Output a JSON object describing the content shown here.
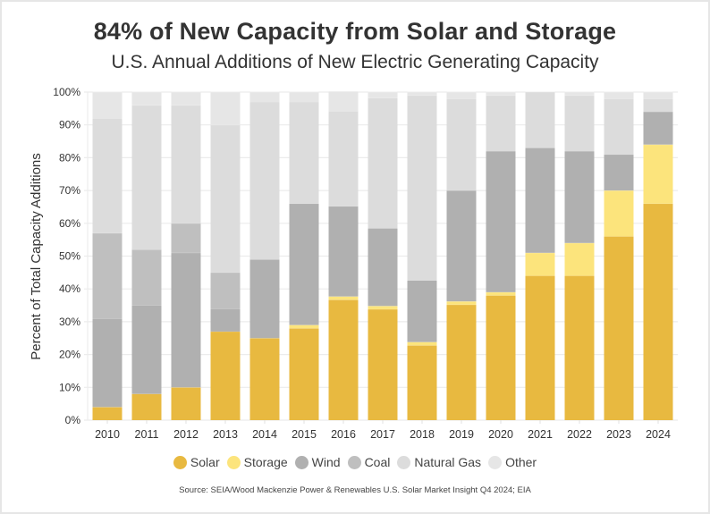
{
  "chart_data": {
    "type": "bar",
    "stacked": true,
    "title": "84% of New Capacity from Solar and Storage",
    "subtitle": "U.S. Annual Additions of New Electric Generating Capacity",
    "xlabel": "",
    "ylabel": "Percent of Total Capacity Additions",
    "ylim": [
      0,
      100
    ],
    "yticks": [
      "0%",
      "10%",
      "20%",
      "30%",
      "40%",
      "50%",
      "60%",
      "70%",
      "80%",
      "90%",
      "100%"
    ],
    "grid": true,
    "legend_position": "bottom",
    "categories": [
      "2010",
      "2011",
      "2012",
      "2013",
      "2014",
      "2015",
      "2016",
      "2017",
      "2018",
      "2019",
      "2020",
      "2021",
      "2022",
      "2023",
      "2024"
    ],
    "series": [
      {
        "name": "Solar",
        "color": "#e8b940",
        "values": [
          4,
          8,
          10,
          27,
          25,
          28,
          36.7,
          33.8,
          22.8,
          35.2,
          38,
          44,
          44,
          56,
          66
        ]
      },
      {
        "name": "Storage",
        "color": "#fce47c",
        "values": [
          0,
          0,
          0,
          0,
          0,
          1,
          1,
          1,
          1,
          1,
          1,
          7,
          10,
          14,
          18
        ]
      },
      {
        "name": "Wind",
        "color": "#b0b0b0",
        "values": [
          27,
          27,
          41,
          7,
          24,
          37,
          27.5,
          23.7,
          18.8,
          33.8,
          43,
          32,
          28,
          11,
          10
        ]
      },
      {
        "name": "Coal",
        "color": "#bfbfbf",
        "values": [
          26,
          17,
          9,
          11,
          0,
          0,
          0,
          0,
          0,
          0,
          0,
          0,
          0,
          0,
          0
        ]
      },
      {
        "name": "Natural Gas",
        "color": "#dcdcdc",
        "values": [
          35,
          44,
          36,
          45,
          48,
          31,
          29,
          39.7,
          56.4,
          28,
          17,
          17,
          17,
          17,
          4
        ]
      },
      {
        "name": "Other",
        "color": "#e6e6e6",
        "values": [
          8,
          4,
          4,
          10,
          3,
          3,
          6,
          1.8,
          1,
          2,
          1,
          0,
          1,
          2,
          2
        ]
      }
    ],
    "source": "Source: SEIA/Wood Mackenzie Power & Renewables U.S. Solar Market Insight Q4 2024; EIA"
  }
}
